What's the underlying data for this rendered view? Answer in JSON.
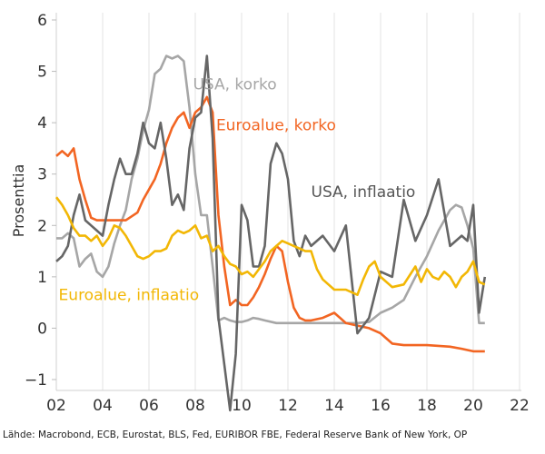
{
  "chart_data": {
    "type": "line",
    "ylabel": "Prosenttia",
    "xlim": [
      2002,
      2022
    ],
    "ylim": [
      -1,
      6
    ],
    "x_ticks": [
      2002,
      2004,
      2006,
      2008,
      2010,
      2012,
      2014,
      2016,
      2018,
      2020,
      2022
    ],
    "x_tick_labels": [
      "02",
      "04",
      "06",
      "08",
      "10",
      "12",
      "14",
      "16",
      "18",
      "20",
      "22"
    ],
    "y_ticks": [
      -1,
      0,
      1,
      2,
      3,
      4,
      5,
      6
    ],
    "y_tick_labels": [
      "−1",
      "0",
      "1",
      "2",
      "3",
      "4",
      "5",
      "6"
    ],
    "grid": "vertical",
    "source": "Lähde: Macrobond, ECB, Eurostat, BLS, Fed, EURIBOR FBE, Federal Reserve Bank of New York, OP",
    "series": [
      {
        "name": "USA, korko",
        "color": "#a6a6a6",
        "points": [
          [
            2002.0,
            1.75
          ],
          [
            2002.25,
            1.75
          ],
          [
            2002.5,
            1.85
          ],
          [
            2002.75,
            1.75
          ],
          [
            2003.0,
            1.2
          ],
          [
            2003.25,
            1.35
          ],
          [
            2003.5,
            1.45
          ],
          [
            2003.75,
            1.1
          ],
          [
            2004.0,
            1.0
          ],
          [
            2004.25,
            1.2
          ],
          [
            2004.5,
            1.65
          ],
          [
            2004.75,
            2.0
          ],
          [
            2005.0,
            2.3
          ],
          [
            2005.25,
            2.9
          ],
          [
            2005.5,
            3.3
          ],
          [
            2005.75,
            3.85
          ],
          [
            2006.0,
            4.25
          ],
          [
            2006.25,
            4.95
          ],
          [
            2006.5,
            5.05
          ],
          [
            2006.75,
            5.3
          ],
          [
            2007.0,
            5.25
          ],
          [
            2007.25,
            5.3
          ],
          [
            2007.5,
            5.2
          ],
          [
            2007.75,
            4.3
          ],
          [
            2008.0,
            3.0
          ],
          [
            2008.25,
            2.2
          ],
          [
            2008.5,
            2.2
          ],
          [
            2008.75,
            1.2
          ],
          [
            2009.0,
            0.15
          ],
          [
            2009.25,
            0.2
          ],
          [
            2009.5,
            0.15
          ],
          [
            2009.75,
            0.12
          ],
          [
            2010.0,
            0.12
          ],
          [
            2010.25,
            0.15
          ],
          [
            2010.5,
            0.2
          ],
          [
            2010.75,
            0.18
          ],
          [
            2011.0,
            0.15
          ],
          [
            2011.5,
            0.1
          ],
          [
            2012.0,
            0.1
          ],
          [
            2013.0,
            0.1
          ],
          [
            2014.0,
            0.1
          ],
          [
            2015.0,
            0.1
          ],
          [
            2015.5,
            0.12
          ],
          [
            2016.0,
            0.3
          ],
          [
            2016.5,
            0.4
          ],
          [
            2017.0,
            0.55
          ],
          [
            2017.5,
            1.0
          ],
          [
            2018.0,
            1.4
          ],
          [
            2018.5,
            1.9
          ],
          [
            2019.0,
            2.3
          ],
          [
            2019.25,
            2.4
          ],
          [
            2019.5,
            2.35
          ],
          [
            2019.75,
            2.0
          ],
          [
            2020.0,
            1.55
          ],
          [
            2020.25,
            0.1
          ],
          [
            2020.5,
            0.1
          ]
        ]
      },
      {
        "name": "Euroalue, korko",
        "color": "#f26522",
        "points": [
          [
            2002.0,
            3.35
          ],
          [
            2002.25,
            3.45
          ],
          [
            2002.5,
            3.35
          ],
          [
            2002.75,
            3.5
          ],
          [
            2003.0,
            2.9
          ],
          [
            2003.25,
            2.5
          ],
          [
            2003.5,
            2.15
          ],
          [
            2003.75,
            2.1
          ],
          [
            2004.0,
            2.1
          ],
          [
            2004.5,
            2.1
          ],
          [
            2005.0,
            2.1
          ],
          [
            2005.5,
            2.25
          ],
          [
            2005.75,
            2.5
          ],
          [
            2006.0,
            2.7
          ],
          [
            2006.25,
            2.9
          ],
          [
            2006.5,
            3.2
          ],
          [
            2006.75,
            3.6
          ],
          [
            2007.0,
            3.9
          ],
          [
            2007.25,
            4.1
          ],
          [
            2007.5,
            4.2
          ],
          [
            2007.75,
            3.9
          ],
          [
            2008.0,
            4.2
          ],
          [
            2008.25,
            4.3
          ],
          [
            2008.5,
            4.5
          ],
          [
            2008.75,
            4.2
          ],
          [
            2009.0,
            2.2
          ],
          [
            2009.25,
            1.2
          ],
          [
            2009.5,
            0.45
          ],
          [
            2009.75,
            0.55
          ],
          [
            2010.0,
            0.45
          ],
          [
            2010.25,
            0.45
          ],
          [
            2010.5,
            0.6
          ],
          [
            2010.75,
            0.8
          ],
          [
            2011.0,
            1.05
          ],
          [
            2011.25,
            1.35
          ],
          [
            2011.5,
            1.6
          ],
          [
            2011.75,
            1.5
          ],
          [
            2012.0,
            0.9
          ],
          [
            2012.25,
            0.4
          ],
          [
            2012.5,
            0.2
          ],
          [
            2012.75,
            0.15
          ],
          [
            2013.0,
            0.15
          ],
          [
            2013.5,
            0.2
          ],
          [
            2014.0,
            0.3
          ],
          [
            2014.25,
            0.2
          ],
          [
            2014.5,
            0.1
          ],
          [
            2015.0,
            0.05
          ],
          [
            2015.5,
            0.0
          ],
          [
            2016.0,
            -0.1
          ],
          [
            2016.5,
            -0.3
          ],
          [
            2017.0,
            -0.33
          ],
          [
            2018.0,
            -0.33
          ],
          [
            2019.0,
            -0.36
          ],
          [
            2019.5,
            -0.4
          ],
          [
            2020.0,
            -0.45
          ],
          [
            2020.5,
            -0.45
          ]
        ]
      },
      {
        "name": "USA, inflaatio",
        "color": "#666666",
        "points": [
          [
            2002.0,
            1.3
          ],
          [
            2002.25,
            1.4
          ],
          [
            2002.5,
            1.6
          ],
          [
            2002.75,
            2.2
          ],
          [
            2003.0,
            2.6
          ],
          [
            2003.25,
            2.1
          ],
          [
            2003.5,
            2.0
          ],
          [
            2003.75,
            1.9
          ],
          [
            2004.0,
            1.8
          ],
          [
            2004.25,
            2.4
          ],
          [
            2004.5,
            2.9
          ],
          [
            2004.75,
            3.3
          ],
          [
            2005.0,
            3.0
          ],
          [
            2005.25,
            3.0
          ],
          [
            2005.5,
            3.4
          ],
          [
            2005.75,
            4.0
          ],
          [
            2006.0,
            3.6
          ],
          [
            2006.25,
            3.5
          ],
          [
            2006.5,
            4.0
          ],
          [
            2006.75,
            3.3
          ],
          [
            2007.0,
            2.4
          ],
          [
            2007.25,
            2.6
          ],
          [
            2007.5,
            2.3
          ],
          [
            2007.75,
            3.5
          ],
          [
            2008.0,
            4.1
          ],
          [
            2008.25,
            4.2
          ],
          [
            2008.5,
            5.3
          ],
          [
            2008.75,
            3.7
          ],
          [
            2009.0,
            0.2
          ],
          [
            2009.25,
            -0.7
          ],
          [
            2009.5,
            -1.6
          ],
          [
            2009.75,
            -0.5
          ],
          [
            2010.0,
            2.4
          ],
          [
            2010.25,
            2.1
          ],
          [
            2010.5,
            1.2
          ],
          [
            2010.75,
            1.2
          ],
          [
            2011.0,
            1.6
          ],
          [
            2011.25,
            3.2
          ],
          [
            2011.5,
            3.6
          ],
          [
            2011.75,
            3.4
          ],
          [
            2012.0,
            2.9
          ],
          [
            2012.25,
            1.7
          ],
          [
            2012.5,
            1.4
          ],
          [
            2012.75,
            1.8
          ],
          [
            2013.0,
            1.6
          ],
          [
            2013.5,
            1.8
          ],
          [
            2014.0,
            1.5
          ],
          [
            2014.5,
            2.0
          ],
          [
            2015.0,
            -0.1
          ],
          [
            2015.5,
            0.2
          ],
          [
            2016.0,
            1.1
          ],
          [
            2016.5,
            1.0
          ],
          [
            2017.0,
            2.5
          ],
          [
            2017.5,
            1.7
          ],
          [
            2018.0,
            2.2
          ],
          [
            2018.5,
            2.9
          ],
          [
            2019.0,
            1.6
          ],
          [
            2019.5,
            1.8
          ],
          [
            2019.75,
            1.7
          ],
          [
            2020.0,
            2.4
          ],
          [
            2020.25,
            0.3
          ],
          [
            2020.5,
            1.0
          ]
        ]
      },
      {
        "name": "Euroalue, inflaatio",
        "color": "#f2b705",
        "points": [
          [
            2002.0,
            2.55
          ],
          [
            2002.25,
            2.4
          ],
          [
            2002.5,
            2.2
          ],
          [
            2002.75,
            1.95
          ],
          [
            2003.0,
            1.8
          ],
          [
            2003.25,
            1.8
          ],
          [
            2003.5,
            1.7
          ],
          [
            2003.75,
            1.8
          ],
          [
            2004.0,
            1.6
          ],
          [
            2004.25,
            1.75
          ],
          [
            2004.5,
            2.0
          ],
          [
            2004.75,
            1.95
          ],
          [
            2005.0,
            1.8
          ],
          [
            2005.25,
            1.6
          ],
          [
            2005.5,
            1.4
          ],
          [
            2005.75,
            1.35
          ],
          [
            2006.0,
            1.4
          ],
          [
            2006.25,
            1.5
          ],
          [
            2006.5,
            1.5
          ],
          [
            2006.75,
            1.55
          ],
          [
            2007.0,
            1.8
          ],
          [
            2007.25,
            1.9
          ],
          [
            2007.5,
            1.85
          ],
          [
            2007.75,
            1.9
          ],
          [
            2008.0,
            2.0
          ],
          [
            2008.25,
            1.75
          ],
          [
            2008.5,
            1.8
          ],
          [
            2008.75,
            1.5
          ],
          [
            2009.0,
            1.6
          ],
          [
            2009.25,
            1.4
          ],
          [
            2009.5,
            1.25
          ],
          [
            2009.75,
            1.2
          ],
          [
            2010.0,
            1.05
          ],
          [
            2010.25,
            1.1
          ],
          [
            2010.5,
            1.0
          ],
          [
            2010.75,
            1.15
          ],
          [
            2011.0,
            1.3
          ],
          [
            2011.25,
            1.5
          ],
          [
            2011.5,
            1.6
          ],
          [
            2011.75,
            1.7
          ],
          [
            2012.0,
            1.65
          ],
          [
            2012.25,
            1.6
          ],
          [
            2012.5,
            1.55
          ],
          [
            2012.75,
            1.5
          ],
          [
            2013.0,
            1.5
          ],
          [
            2013.25,
            1.15
          ],
          [
            2013.5,
            0.95
          ],
          [
            2013.75,
            0.85
          ],
          [
            2014.0,
            0.75
          ],
          [
            2014.5,
            0.75
          ],
          [
            2015.0,
            0.65
          ],
          [
            2015.25,
            0.95
          ],
          [
            2015.5,
            1.2
          ],
          [
            2015.75,
            1.3
          ],
          [
            2016.0,
            1.0
          ],
          [
            2016.5,
            0.8
          ],
          [
            2017.0,
            0.85
          ],
          [
            2017.5,
            1.2
          ],
          [
            2017.75,
            0.9
          ],
          [
            2018.0,
            1.15
          ],
          [
            2018.25,
            1.0
          ],
          [
            2018.5,
            0.95
          ],
          [
            2018.75,
            1.1
          ],
          [
            2019.0,
            1.0
          ],
          [
            2019.25,
            0.8
          ],
          [
            2019.5,
            1.0
          ],
          [
            2019.75,
            1.1
          ],
          [
            2020.0,
            1.3
          ],
          [
            2020.25,
            0.9
          ],
          [
            2020.5,
            0.85
          ]
        ]
      }
    ],
    "annotations": [
      {
        "text": "USA, korko",
        "x": 2007.9,
        "y": 4.65,
        "color": "#a6a6a6"
      },
      {
        "text": "Euroalue, korko",
        "x": 2008.9,
        "y": 3.85,
        "color": "#f26522"
      },
      {
        "text": "USA, inflaatio",
        "x": 2013.0,
        "y": 2.55,
        "color": "#555555"
      },
      {
        "text": "Euroalue, inflaatio",
        "x": 2002.1,
        "y": 0.55,
        "color": "#f2b705"
      }
    ]
  }
}
